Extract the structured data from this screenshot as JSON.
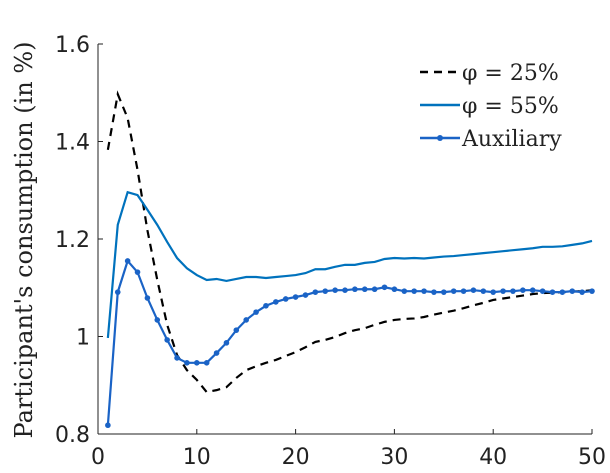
{
  "chart_data": {
    "type": "line",
    "y_label": "Participant's consumption (in %)",
    "x": [
      1,
      2,
      3,
      4,
      5,
      6,
      7,
      8,
      9,
      10,
      11,
      12,
      13,
      14,
      15,
      16,
      17,
      18,
      19,
      20,
      21,
      22,
      23,
      24,
      25,
      26,
      27,
      28,
      29,
      30,
      31,
      32,
      33,
      34,
      35,
      36,
      37,
      38,
      39,
      40,
      41,
      42,
      43,
      44,
      45,
      46,
      47,
      48,
      49,
      50
    ],
    "series": [
      {
        "name": "φ = 25%",
        "color": "#000000",
        "dash": true,
        "markers": false,
        "values": [
          1.383,
          1.497,
          1.448,
          1.342,
          1.218,
          1.116,
          1.024,
          0.962,
          0.931,
          0.911,
          0.886,
          0.89,
          0.896,
          0.915,
          0.931,
          0.939,
          0.946,
          0.952,
          0.96,
          0.968,
          0.978,
          0.989,
          0.993,
          0.999,
          1.007,
          1.013,
          1.017,
          1.024,
          1.03,
          1.034,
          1.036,
          1.037,
          1.04,
          1.045,
          1.049,
          1.053,
          1.058,
          1.064,
          1.069,
          1.075,
          1.078,
          1.081,
          1.084,
          1.087,
          1.089,
          1.09,
          1.091,
          1.092,
          1.093,
          1.095
        ]
      },
      {
        "name": "φ = 55%",
        "color": "#0072bd",
        "dash": false,
        "markers": false,
        "values": [
          0.997,
          1.229,
          1.296,
          1.29,
          1.26,
          1.229,
          1.194,
          1.161,
          1.14,
          1.126,
          1.116,
          1.118,
          1.114,
          1.118,
          1.122,
          1.122,
          1.12,
          1.122,
          1.124,
          1.126,
          1.13,
          1.138,
          1.138,
          1.143,
          1.147,
          1.147,
          1.151,
          1.153,
          1.159,
          1.161,
          1.16,
          1.161,
          1.16,
          1.162,
          1.164,
          1.165,
          1.167,
          1.169,
          1.171,
          1.173,
          1.175,
          1.177,
          1.179,
          1.181,
          1.184,
          1.184,
          1.185,
          1.188,
          1.191,
          1.196
        ]
      },
      {
        "name": "Auxiliary",
        "color": "#1a63c6",
        "dash": false,
        "markers": true,
        "values": [
          0.818,
          1.091,
          1.155,
          1.132,
          1.079,
          1.034,
          0.993,
          0.956,
          0.946,
          0.946,
          0.946,
          0.966,
          0.987,
          1.013,
          1.034,
          1.05,
          1.063,
          1.071,
          1.077,
          1.081,
          1.085,
          1.091,
          1.093,
          1.095,
          1.095,
          1.097,
          1.097,
          1.097,
          1.101,
          1.097,
          1.093,
          1.093,
          1.093,
          1.091,
          1.091,
          1.093,
          1.093,
          1.095,
          1.093,
          1.091,
          1.093,
          1.093,
          1.095,
          1.095,
          1.093,
          1.091,
          1.091,
          1.093,
          1.091,
          1.093
        ]
      }
    ],
    "xlim": [
      0,
      50
    ],
    "xticks": [
      0,
      10,
      20,
      30,
      40,
      50
    ],
    "ylim": [
      0.8,
      1.6
    ],
    "yticks": [
      0.8,
      1,
      1.2,
      1.4,
      1.6
    ],
    "legend": "upper right"
  }
}
